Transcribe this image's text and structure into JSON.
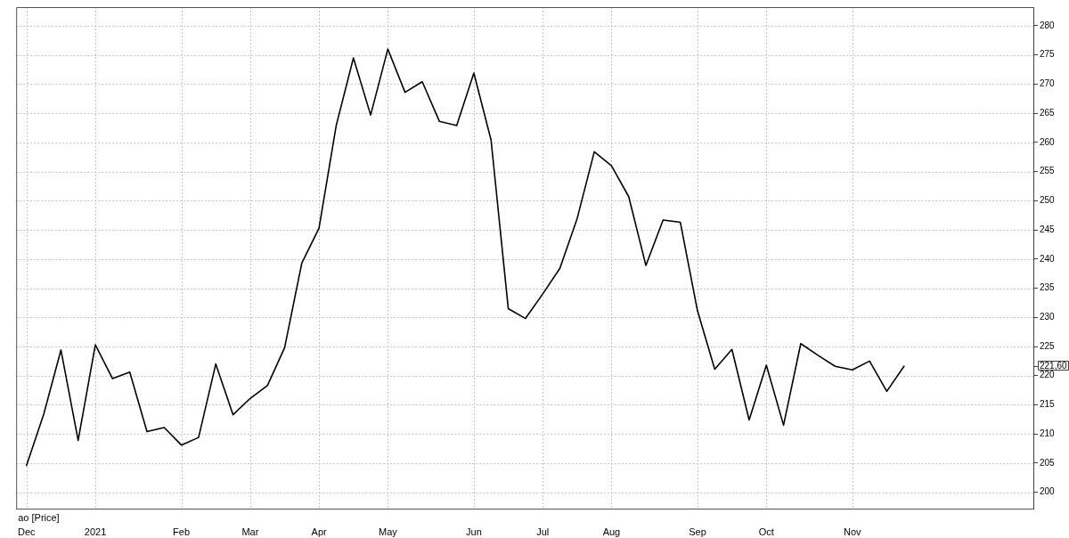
{
  "chart_data": {
    "type": "line",
    "categories": [
      "Dec",
      null,
      null,
      null,
      "2021",
      null,
      null,
      null,
      null,
      "Feb",
      null,
      null,
      null,
      "Mar",
      null,
      null,
      null,
      "Apr",
      null,
      null,
      null,
      "May",
      null,
      null,
      null,
      null,
      "Jun",
      null,
      null,
      null,
      "Jul",
      null,
      null,
      null,
      "Aug",
      null,
      null,
      null,
      null,
      "Sep",
      null,
      null,
      null,
      "Oct",
      null,
      null,
      null,
      null,
      "Nov",
      null,
      null,
      null
    ],
    "values": [
      204.6,
      213.4,
      224.4,
      208.9,
      225.3,
      219.5,
      220.6,
      210.4,
      211.1,
      208.1,
      209.4,
      222.0,
      213.3,
      216.1,
      218.3,
      224.8,
      239.3,
      245.3,
      262.9,
      274.5,
      264.7,
      276.0,
      268.6,
      270.4,
      263.6,
      262.9,
      271.9,
      260.4,
      231.5,
      229.8,
      234.0,
      238.4,
      246.9,
      258.4,
      256.0,
      250.7,
      238.9,
      246.7,
      246.3,
      231.1,
      221.1,
      224.5,
      212.4,
      221.8,
      211.5,
      225.5,
      223.5,
      221.6,
      221.0,
      222.5,
      217.3,
      221.6
    ],
    "color": "#000000",
    "ylim": [
      197.2,
      283.2
    ],
    "yticks": [
      200,
      205,
      210,
      215,
      220,
      {
        "value": 221.6,
        "label": "221,60"
      },
      225,
      230,
      235,
      240,
      245,
      250,
      255,
      260,
      265,
      270,
      275,
      280
    ],
    "grid": true,
    "annotations": [
      "ао [Price]"
    ]
  }
}
